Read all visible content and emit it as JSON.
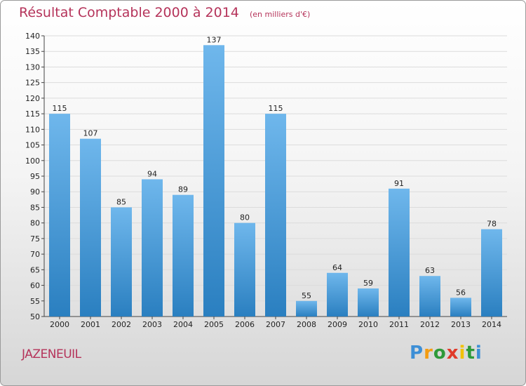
{
  "header": {
    "title": "Résultat Comptable 2000 à 2014",
    "unit": "(en milliers d'€)"
  },
  "commune": "JAZENEUIL",
  "logo": {
    "letters": [
      "P",
      "r",
      "o",
      "x",
      "i",
      "t",
      "i"
    ],
    "colors": [
      "#3d8fd6",
      "#f39c12",
      "#2e9a3a",
      "#e03a2a",
      "#f2c200",
      "#2e9a3a",
      "#3d8fd6"
    ]
  },
  "colors": {
    "bar_top": "#6fb7ec",
    "bar_bottom": "#2a7fc0",
    "title": "#b5335a"
  },
  "chart_data": {
    "type": "bar",
    "categories": [
      "2000",
      "2001",
      "2002",
      "2003",
      "2004",
      "2005",
      "2006",
      "2007",
      "2008",
      "2009",
      "2010",
      "2011",
      "2012",
      "2013",
      "2014"
    ],
    "values": [
      115,
      107,
      85,
      94,
      89,
      137,
      80,
      115,
      55,
      64,
      59,
      91,
      63,
      56,
      78
    ],
    "ylim": [
      50,
      140
    ],
    "yticks": [
      50,
      55,
      60,
      65,
      70,
      75,
      80,
      85,
      90,
      95,
      100,
      105,
      110,
      115,
      120,
      125,
      130,
      135,
      140
    ],
    "grid": true
  }
}
